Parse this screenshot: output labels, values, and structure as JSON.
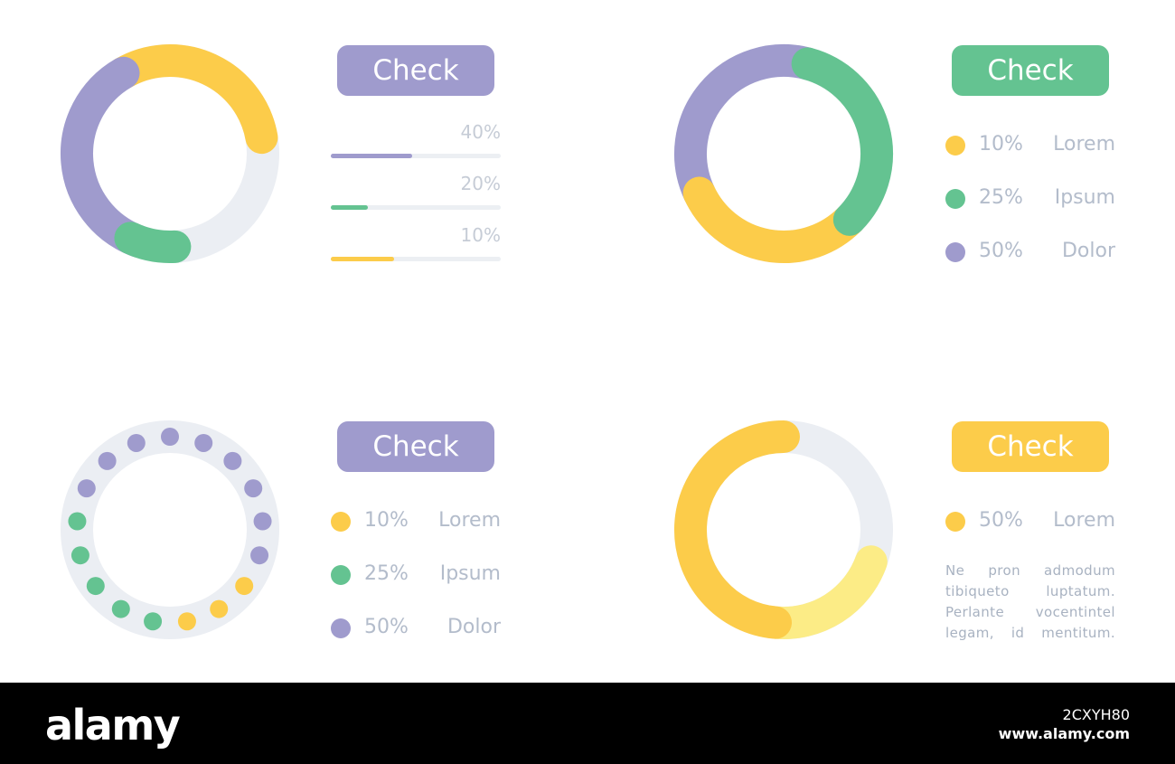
{
  "colors": {
    "purple": "#9f9bcd",
    "green": "#64c391",
    "yellow": "#fccc4a",
    "light_yellow": "#fcec86",
    "track": "#ebeef3",
    "muted_text": "#b3bccb",
    "footer": "#000000"
  },
  "chart_data": [
    {
      "type": "donut",
      "button_label": "Check",
      "button_color": "#9f9bcd",
      "ring": [
        {
          "color": "#fccc4a",
          "start_deg": 240,
          "end_deg": 350
        },
        {
          "color": "#9f9bcd",
          "start_deg": 110,
          "end_deg": 240
        },
        {
          "color": "#64c391",
          "start_deg": 87,
          "end_deg": 115
        }
      ],
      "bars": [
        {
          "label": "40%",
          "value": 0.48,
          "color": "#9f9bcd"
        },
        {
          "label": "20%",
          "value": 0.22,
          "color": "#64c391"
        },
        {
          "label": "10%",
          "value": 0.37,
          "color": "#fccc4a"
        }
      ]
    },
    {
      "type": "donut",
      "button_label": "Check",
      "button_color": "#64c391",
      "ring": [
        {
          "color": "#9f9bcd",
          "start_deg": 155,
          "end_deg": 285
        },
        {
          "color": "#fccc4a",
          "start_deg": 45,
          "end_deg": 155
        },
        {
          "color": "#64c391",
          "start_deg": 285,
          "end_deg": 405
        }
      ],
      "legend": [
        {
          "pct": "10%",
          "label": "Lorem",
          "color": "#fccc4a"
        },
        {
          "pct": "25%",
          "label": "Ipsum",
          "color": "#64c391"
        },
        {
          "pct": "50%",
          "label": "Dolor",
          "color": "#9f9bcd"
        }
      ]
    },
    {
      "type": "dot-ring",
      "button_label": "Check",
      "button_color": "#9f9bcd",
      "dots": [
        "#9f9bcd",
        "#9f9bcd",
        "#9f9bcd",
        "#9f9bcd",
        "#9f9bcd",
        "#9f9bcd",
        "#9f9bcd",
        "#9f9bcd",
        "#9f9bcd",
        "#fccc4a",
        "#fccc4a",
        "#fccc4a",
        "#64c391",
        "#64c391",
        "#64c391",
        "#64c391",
        "#64c391"
      ],
      "legend": [
        {
          "pct": "10%",
          "label": "Lorem",
          "color": "#fccc4a"
        },
        {
          "pct": "25%",
          "label": "Ipsum",
          "color": "#64c391"
        },
        {
          "pct": "50%",
          "label": "Dolor",
          "color": "#9f9bcd"
        }
      ]
    },
    {
      "type": "donut",
      "button_label": "Check",
      "button_color": "#fccc4a",
      "ring": [
        {
          "color": "#fcec86",
          "start_deg": 20,
          "end_deg": 95
        },
        {
          "color": "#fccc4a",
          "start_deg": 95,
          "end_deg": 270
        }
      ],
      "legend": [
        {
          "pct": "50%",
          "label": "Lorem",
          "color": "#fccc4a"
        }
      ],
      "description": [
        "Ne pron admodum",
        "tibiqueto luptatum.",
        "Perlante vocentintel",
        "legam, id mentitum."
      ]
    }
  ],
  "footer": {
    "logo": "alamy",
    "image_id": "2CXYH80",
    "site": "www.alamy.com"
  }
}
